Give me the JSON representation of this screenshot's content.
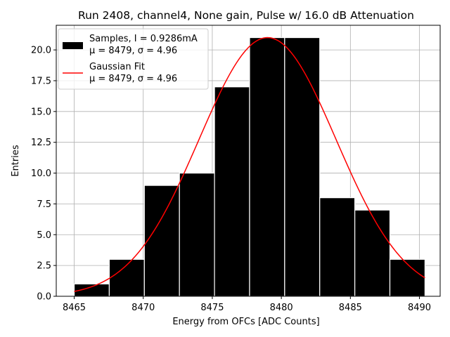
{
  "chart_data": {
    "type": "bar",
    "title": "Run 2408, channel4, None gain, Pulse w/ 16.0 dB Attenuation",
    "xlabel": "Energy from OFCs [ADC Counts]",
    "ylabel": "Entries",
    "xlim": [
      8463.7,
      8491.5
    ],
    "ylim": [
      0,
      22
    ],
    "grid": true,
    "legend_position": "top-left",
    "bin_edges": [
      8465.0,
      8467.54,
      8470.08,
      8472.62,
      8475.16,
      8477.7,
      8480.24,
      8482.78,
      8485.32,
      8487.86,
      8490.4
    ],
    "counts": [
      1,
      3,
      9,
      10,
      17,
      21,
      21,
      8,
      7,
      3
    ],
    "x_ticks": [
      "8465",
      "8470",
      "8475",
      "8480",
      "8485",
      "8490"
    ],
    "x_tick_values": [
      8465,
      8470,
      8475,
      8480,
      8485,
      8490
    ],
    "y_ticks": [
      "0.0",
      "2.5",
      "5.0",
      "7.5",
      "10.0",
      "12.5",
      "15.0",
      "17.5",
      "20.0"
    ],
    "y_tick_values": [
      0,
      2.5,
      5,
      7.5,
      10,
      12.5,
      15,
      17.5,
      20
    ],
    "series": [
      {
        "name": "Samples, I = 0.9286mA",
        "stats": "μ = 8479, σ = 4.96",
        "kind": "histogram",
        "color": "#000000",
        "edgecolor": "#ffffff"
      },
      {
        "name": "Gaussian Fit",
        "stats": "μ = 8479, σ = 4.96",
        "kind": "line",
        "color": "#ff0000",
        "mu": 8479,
        "sigma": 4.96,
        "amplitude": 21,
        "x_range": [
          8465,
          8490.4
        ]
      }
    ]
  }
}
